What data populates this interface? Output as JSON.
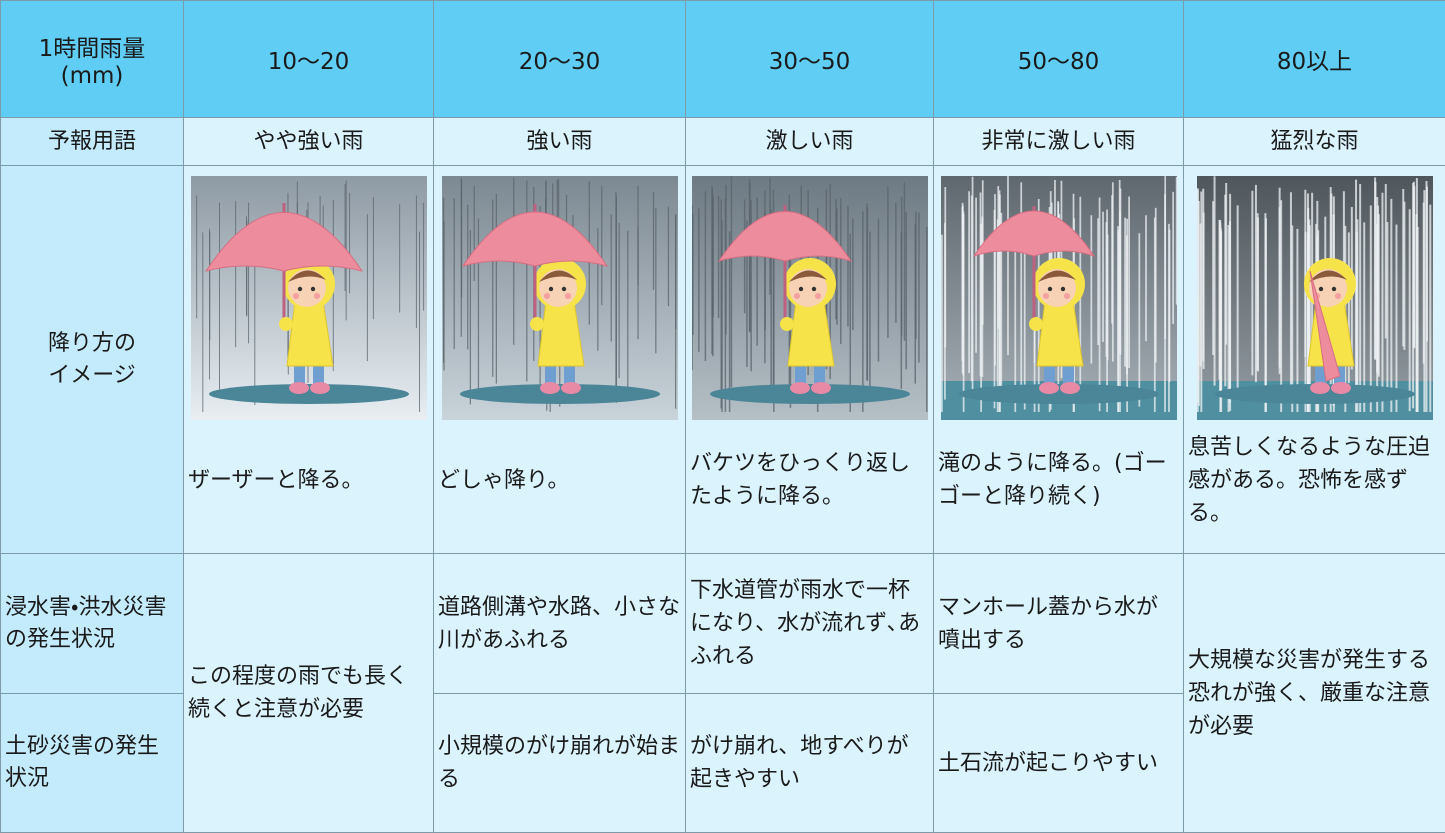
{
  "table": {
    "corner": [
      "1時間雨量",
      "(mm)"
    ],
    "ranges": [
      "10〜20",
      "20〜30",
      "30〜50",
      "50〜80",
      "80以上"
    ],
    "forecast_term": {
      "label": "予報用語",
      "values": [
        "やや強い雨",
        "強い雨",
        "激しい雨",
        "非常に激しい雨",
        "猛烈な雨"
      ]
    },
    "image_row": {
      "label": [
        "降り方の",
        "イメージ"
      ],
      "descriptions": [
        "ザーザーと降る。",
        "どしゃ降り。",
        "バケツをひっくり返したように降る。",
        "滝のように降る。(ゴーゴーと降り続く)",
        "息苦しくなるような圧迫感がある。恐怖を感ずる。"
      ]
    },
    "flood": {
      "label": "浸水害・洪水災害の発生状況",
      "values": [
        "道路側溝や水路、小さな川があふれる",
        "下水道管が雨水で一杯になり、水が流れず､あふれる",
        "マンホール蓋から水が噴出する"
      ]
    },
    "landslide": {
      "label": "土砂災害の発生状況",
      "values": [
        "小規模のがけ崩れが始まる",
        "がけ崩れ、地すべりが起きやすい",
        "土石流が起こりやすい"
      ]
    },
    "combined": [
      "この程度の雨でも長く続くと注意が必要",
      "大規模な災害が発生する恐れが強く、厳重な注意が必要"
    ]
  }
}
